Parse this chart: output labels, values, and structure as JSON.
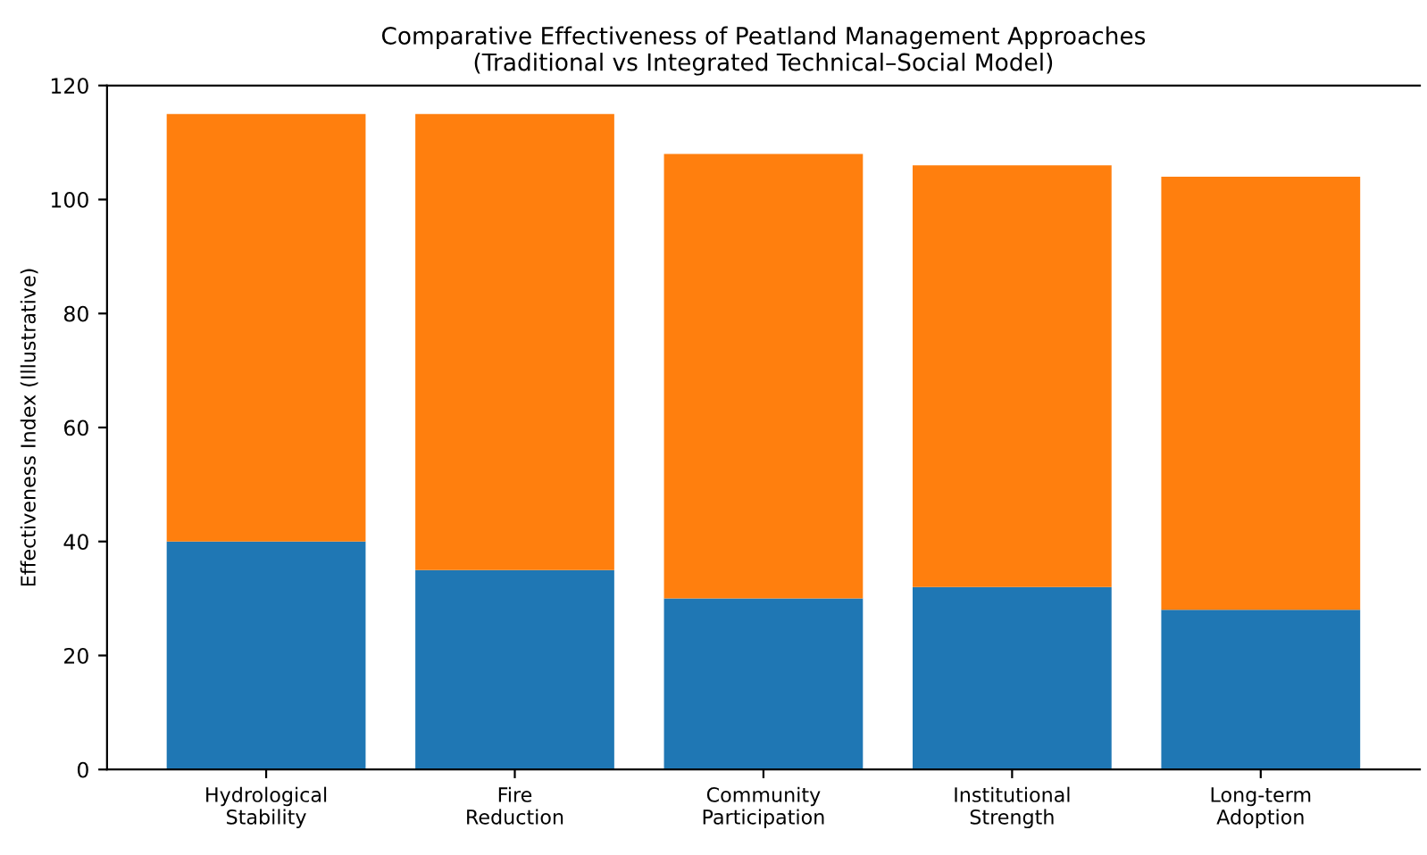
{
  "chart_data": {
    "type": "bar",
    "stacked": true,
    "title": "Comparative Effectiveness of Peatland Management Approaches\n(Traditional vs Integrated Technical–Social Model)",
    "ylabel": "Effectiveness Index (Illustrative)",
    "categories": [
      "Hydrological\nStability",
      "Fire\nReduction",
      "Community\nParticipation",
      "Institutional\nStrength",
      "Long-term\nAdoption"
    ],
    "series": [
      {
        "color": "#1f77b4",
        "values": [
          40,
          35,
          30,
          32,
          28
        ]
      },
      {
        "color": "#ff7f0e",
        "values": [
          75,
          80,
          78,
          74,
          76
        ]
      }
    ],
    "ylim": [
      0,
      120
    ],
    "yticks": [
      0,
      20,
      40,
      60,
      80,
      100,
      120
    ],
    "grid": false,
    "legend": false
  }
}
